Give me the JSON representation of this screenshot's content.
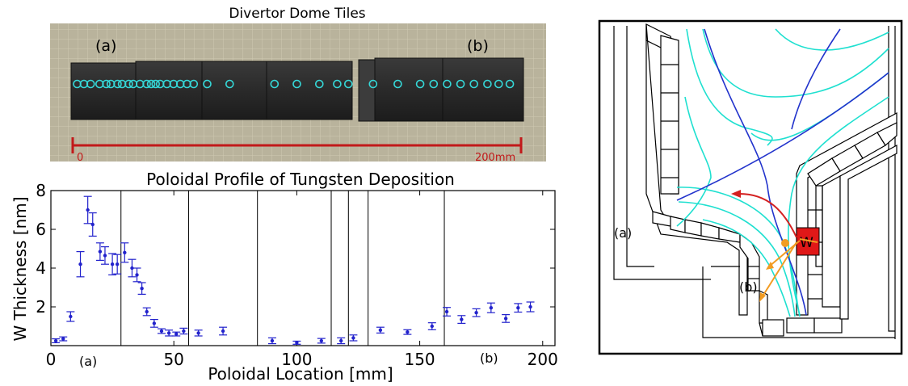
{
  "photo": {
    "title": "Divertor Dome Tiles",
    "label_a": "(a)",
    "label_b": "(b)",
    "scale_start": "0",
    "scale_end": "200mm",
    "marker_color": "#35d8d8",
    "scale_color": "#c2191a"
  },
  "diagram": {
    "label_a": "(a)",
    "label_b": "(b)",
    "w_label": "W",
    "cyan": "#1fe0d0",
    "blue": "#2233cc",
    "red_arrow": "#d42020",
    "orange_arrow": "#f29c22",
    "w_tile_color": "#e01818"
  },
  "chart_data": {
    "type": "scatter",
    "title": "Poloidal Profile of Tungsten Deposition",
    "xlabel": "Poloidal Location [mm]",
    "ylabel": "W Thickness [nm]",
    "xlim": [
      0,
      205
    ],
    "ylim": [
      0,
      8
    ],
    "xticks": [
      0,
      50,
      100,
      150,
      200
    ],
    "yticks": [
      2,
      4,
      6,
      8
    ],
    "grid": false,
    "marker_color": "#2222cc",
    "tile_boundaries": [
      28.5,
      56,
      84,
      114,
      121,
      129,
      160
    ],
    "region_labels": [
      "(a)",
      "(b)"
    ],
    "series": [
      {
        "x": [
          2,
          5,
          8,
          12,
          15,
          17,
          20,
          22,
          25,
          27,
          30,
          33,
          35,
          37,
          39,
          42,
          45,
          48,
          51,
          54,
          60,
          70,
          90,
          100,
          110,
          118,
          123,
          134,
          145,
          155,
          161,
          167,
          173,
          179,
          185,
          190,
          195
        ],
        "y": [
          0.25,
          0.35,
          1.5,
          4.2,
          7.0,
          6.25,
          4.85,
          4.65,
          4.2,
          4.2,
          4.8,
          4.0,
          3.65,
          2.95,
          1.75,
          1.15,
          0.75,
          0.65,
          0.6,
          0.75,
          0.65,
          0.75,
          0.25,
          0.15,
          0.25,
          0.25,
          0.4,
          0.8,
          0.7,
          1.0,
          1.75,
          1.35,
          1.7,
          1.95,
          1.4,
          1.95,
          2.0
        ],
        "err": [
          0.1,
          0.1,
          0.25,
          0.65,
          0.7,
          0.6,
          0.45,
          0.45,
          0.55,
          0.5,
          0.5,
          0.45,
          0.35,
          0.3,
          0.2,
          0.2,
          0.12,
          0.15,
          0.1,
          0.15,
          0.15,
          0.2,
          0.15,
          0.08,
          0.12,
          0.15,
          0.15,
          0.15,
          0.12,
          0.18,
          0.22,
          0.2,
          0.2,
          0.25,
          0.2,
          0.22,
          0.25
        ]
      }
    ]
  }
}
